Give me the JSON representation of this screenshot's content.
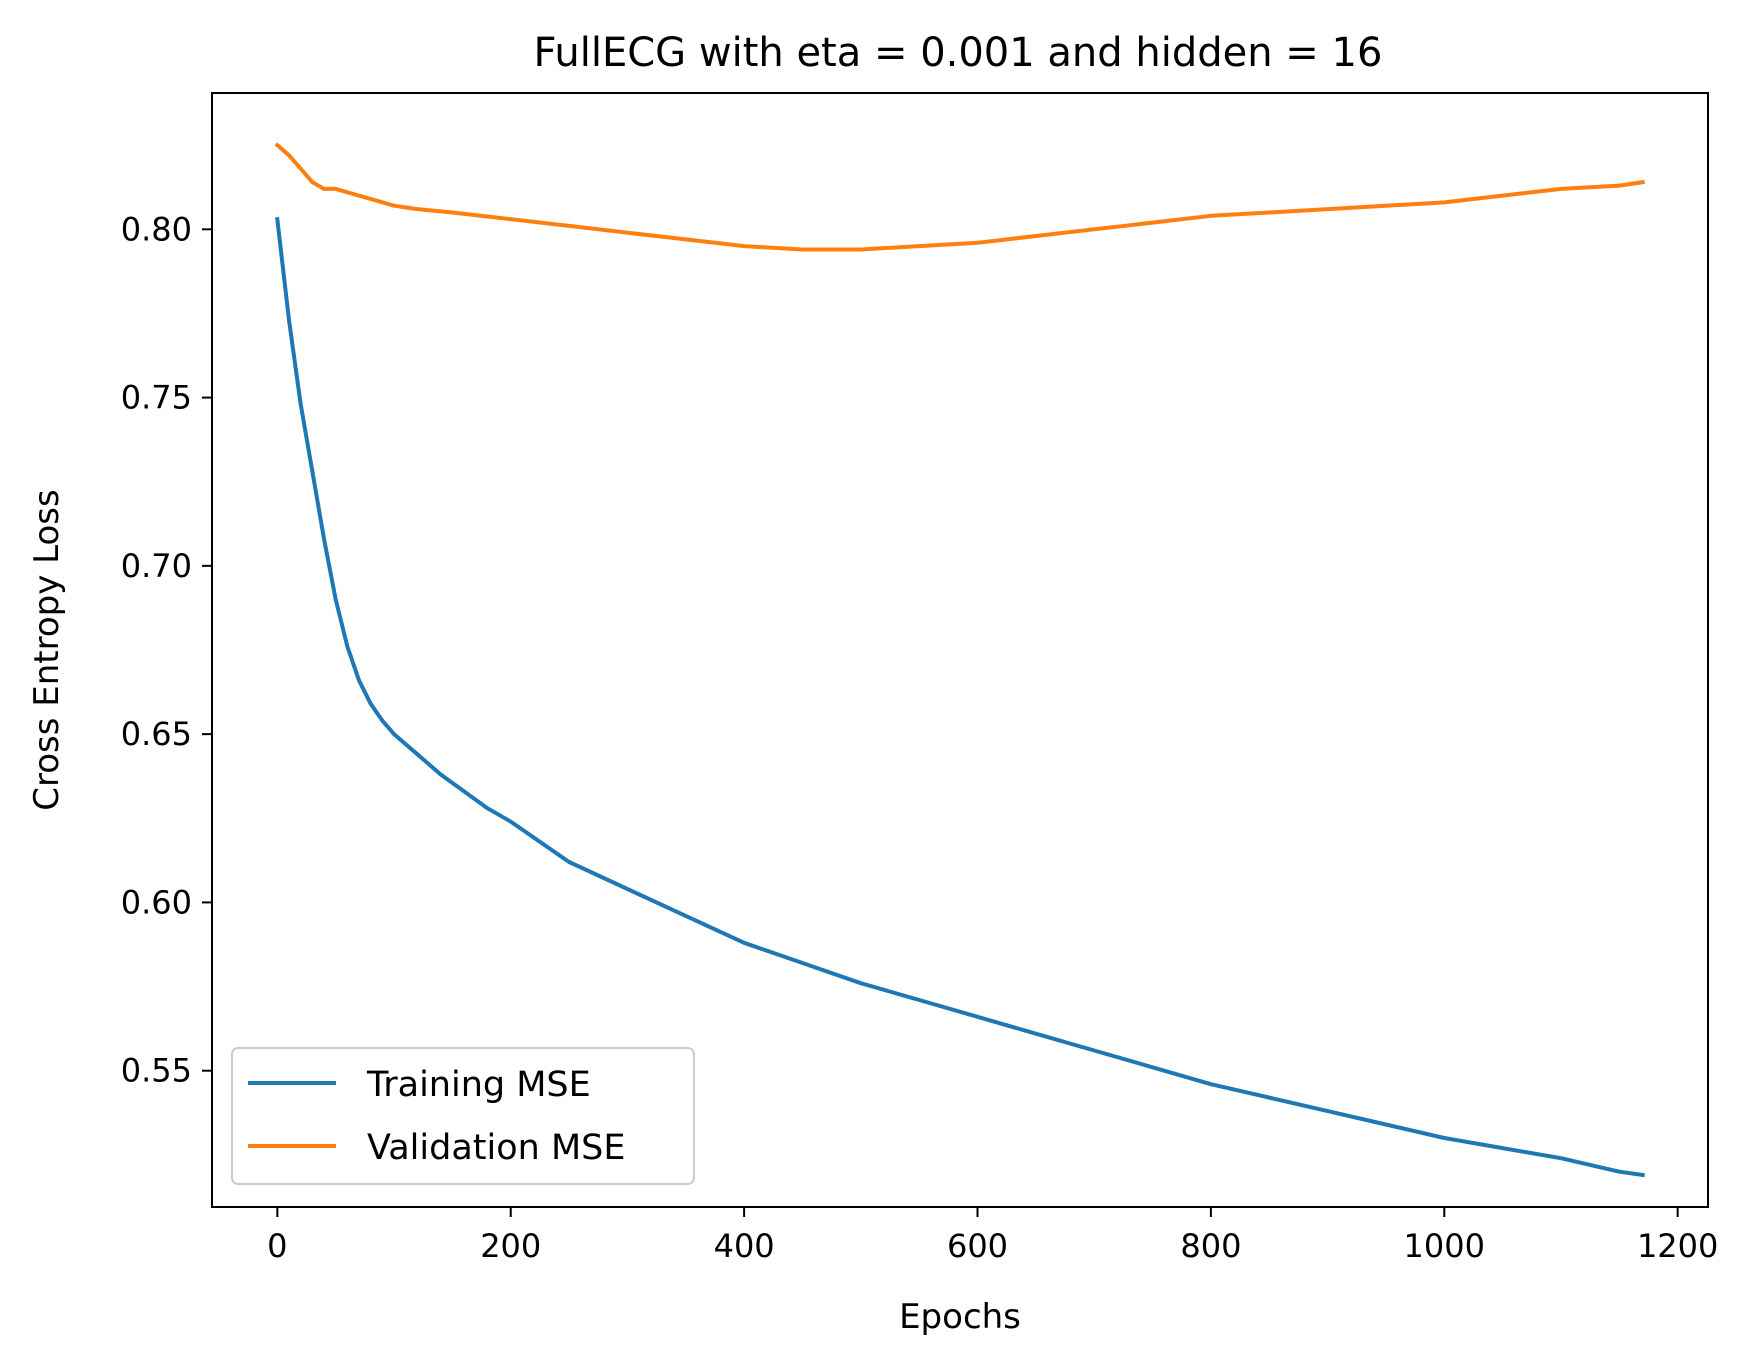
{
  "chart_data": {
    "type": "line",
    "title": "FullECG with eta = 0.001 and hidden = 16",
    "xlabel": "Epochs",
    "ylabel": "Cross Entropy Loss",
    "xlim": [
      -56,
      1226
    ],
    "ylim": [
      0.5095,
      0.8405
    ],
    "x_ticks": [
      0,
      200,
      400,
      600,
      800,
      1000,
      1200
    ],
    "x_tick_labels": [
      "0",
      "200",
      "400",
      "600",
      "800",
      "1000",
      "1200"
    ],
    "y_ticks": [
      0.55,
      0.6,
      0.65,
      0.7,
      0.75,
      0.8
    ],
    "y_tick_labels": [
      "0.55",
      "0.60",
      "0.65",
      "0.70",
      "0.75",
      "0.80"
    ],
    "grid": false,
    "legend_position": "lower-left",
    "series": [
      {
        "name": "Training MSE",
        "color": "#1f77b4",
        "x": [
          0,
          10,
          20,
          30,
          40,
          50,
          60,
          70,
          80,
          90,
          100,
          120,
          140,
          160,
          180,
          200,
          250,
          300,
          350,
          400,
          450,
          500,
          550,
          600,
          650,
          700,
          750,
          800,
          850,
          900,
          950,
          1000,
          1050,
          1100,
          1150,
          1170
        ],
        "y": [
          0.803,
          0.773,
          0.748,
          0.728,
          0.708,
          0.69,
          0.676,
          0.666,
          0.659,
          0.654,
          0.65,
          0.644,
          0.638,
          0.633,
          0.628,
          0.624,
          0.612,
          0.604,
          0.596,
          0.588,
          0.582,
          0.576,
          0.571,
          0.566,
          0.561,
          0.556,
          0.551,
          0.546,
          0.542,
          0.538,
          0.534,
          0.53,
          0.527,
          0.524,
          0.52,
          0.519
        ]
      },
      {
        "name": "Validation MSE",
        "color": "#ff7f0e",
        "x": [
          0,
          10,
          20,
          30,
          40,
          50,
          60,
          80,
          100,
          120,
          150,
          200,
          250,
          300,
          350,
          400,
          450,
          500,
          550,
          600,
          650,
          700,
          750,
          800,
          850,
          900,
          950,
          1000,
          1050,
          1100,
          1150,
          1170
        ],
        "y": [
          0.825,
          0.822,
          0.818,
          0.814,
          0.812,
          0.812,
          0.811,
          0.809,
          0.807,
          0.806,
          0.805,
          0.803,
          0.801,
          0.799,
          0.797,
          0.795,
          0.794,
          0.794,
          0.795,
          0.796,
          0.798,
          0.8,
          0.802,
          0.804,
          0.805,
          0.806,
          0.807,
          0.808,
          0.81,
          0.812,
          0.813,
          0.814
        ]
      }
    ]
  }
}
